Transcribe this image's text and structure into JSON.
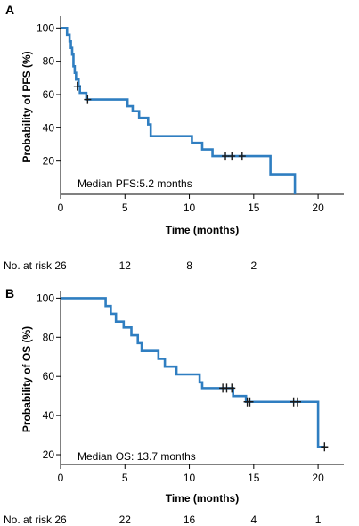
{
  "chart_data": [
    {
      "type": "line",
      "subtype": "kaplan-meier",
      "panel_label": "A",
      "xlabel": "Time (months)",
      "ylabel": "Probability of PFS (%)",
      "xlim": [
        0,
        22
      ],
      "ylim": [
        0,
        105
      ],
      "x_ticks": [
        0,
        5,
        10,
        15,
        20
      ],
      "y_ticks": [
        20,
        40,
        60,
        80,
        100
      ],
      "annotation": "Median PFS:5.2 months",
      "series_color": "#2f7ec1",
      "steps": [
        [
          0,
          100
        ],
        [
          0.5,
          96
        ],
        [
          0.7,
          92
        ],
        [
          0.8,
          88
        ],
        [
          0.9,
          84
        ],
        [
          1.0,
          77
        ],
        [
          1.1,
          73
        ],
        [
          1.2,
          69
        ],
        [
          1.4,
          65
        ],
        [
          1.5,
          61
        ],
        [
          2.0,
          57
        ],
        [
          5.2,
          53
        ],
        [
          5.6,
          50
        ],
        [
          6.1,
          46
        ],
        [
          6.8,
          42
        ],
        [
          7.0,
          35
        ],
        [
          10.2,
          31
        ],
        [
          11.0,
          27
        ],
        [
          11.8,
          23
        ],
        [
          16.3,
          12
        ],
        [
          18.2,
          0
        ]
      ],
      "end_x": 18.2,
      "censored": [
        [
          1.3,
          65
        ],
        [
          2.1,
          57
        ],
        [
          12.8,
          23
        ],
        [
          13.3,
          23
        ],
        [
          14.1,
          23
        ]
      ],
      "risk_table": {
        "label": "No. at risk",
        "times": [
          0,
          5,
          10,
          15
        ],
        "counts": [
          "26",
          "12",
          "8",
          "2"
        ]
      }
    },
    {
      "type": "line",
      "subtype": "kaplan-meier",
      "panel_label": "B",
      "xlabel": "Time (months)",
      "ylabel": "Probability of OS (%)",
      "xlim": [
        0,
        22
      ],
      "ylim": [
        15,
        102
      ],
      "x_ticks": [
        0,
        5,
        10,
        15,
        20
      ],
      "y_ticks": [
        20,
        40,
        60,
        80,
        100
      ],
      "annotation": "Median OS: 13.7 months",
      "series_color": "#2f7ec1",
      "steps": [
        [
          0,
          100
        ],
        [
          3.5,
          96
        ],
        [
          3.9,
          92
        ],
        [
          4.3,
          88
        ],
        [
          4.9,
          85
        ],
        [
          5.5,
          81
        ],
        [
          6.0,
          77
        ],
        [
          6.3,
          73
        ],
        [
          7.6,
          69
        ],
        [
          8.1,
          65
        ],
        [
          9.0,
          61
        ],
        [
          10.8,
          57
        ],
        [
          11.0,
          54
        ],
        [
          13.4,
          50
        ],
        [
          14.4,
          47
        ],
        [
          20.0,
          24
        ]
      ],
      "end_x": 20.5,
      "censored": [
        [
          12.6,
          54
        ],
        [
          12.9,
          54
        ],
        [
          13.3,
          54
        ],
        [
          14.5,
          47
        ],
        [
          14.7,
          47
        ],
        [
          18.1,
          47
        ],
        [
          18.4,
          47
        ],
        [
          20.5,
          24
        ]
      ],
      "risk_table": {
        "label": "No. at risk",
        "times": [
          0,
          5,
          10,
          15,
          20
        ],
        "counts": [
          "26",
          "22",
          "16",
          "4",
          "1"
        ]
      }
    }
  ]
}
